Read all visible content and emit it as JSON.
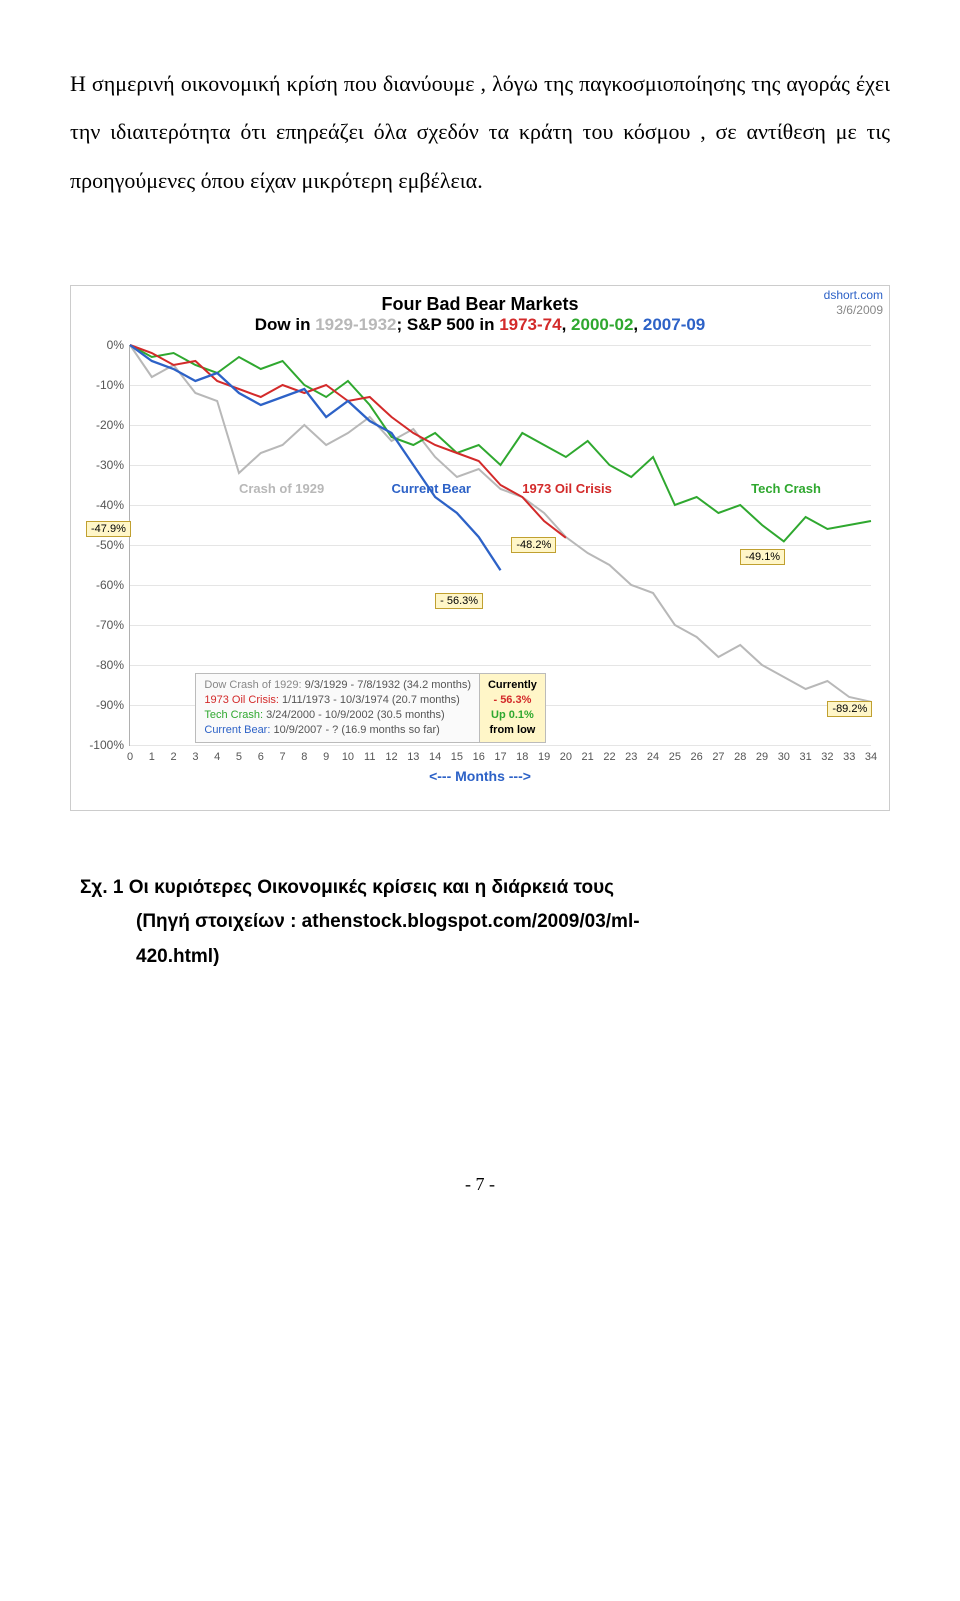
{
  "paragraph": "Η σημερινή οικονομική κρίση που διανύουμε , λόγω της παγκοσμιοποίησης της αγοράς έχει την ιδιαιτερότητα ότι επηρεάζει όλα σχεδόν τα κράτη του  κόσμου , σε αντίθεση με τις προηγούμενες όπου είχαν μικρότερη εμβέλεια.",
  "chart": {
    "title": "Four Bad Bear Markets",
    "subtitle_prefix": "Dow in ",
    "sub_grey": "1929-1932",
    "sub_mid": "; S&P 500 in ",
    "sub_red": "1973-74",
    "sub_sep": ", ",
    "sub_green": "2000-02",
    "sub_blue": "2007-09",
    "source_link": "dshort.com",
    "source_date": "3/6/2009",
    "ylabels": [
      "0%",
      "-10%",
      "-20%",
      "-30%",
      "-40%",
      "-50%",
      "-60%",
      "-70%",
      "-80%",
      "-90%",
      "-100%"
    ],
    "xlabels": [
      "0",
      "1",
      "2",
      "3",
      "4",
      "5",
      "6",
      "7",
      "8",
      "9",
      "10",
      "11",
      "12",
      "13",
      "14",
      "15",
      "16",
      "17",
      "18",
      "19",
      "20",
      "21",
      "22",
      "23",
      "24",
      "25",
      "26",
      "27",
      "28",
      "29",
      "30",
      "31",
      "32",
      "33",
      "34"
    ],
    "x_axis_title": "<--- Months --->",
    "colors": {
      "grey": "#b8b8b8",
      "red": "#d32a2a",
      "green": "#2fa82f",
      "blue": "#2d62c7",
      "grid": "#e5e5e5",
      "x_title": "#2d62c7"
    },
    "tags": {
      "crash29": "Crash of 1929",
      "current": "Current Bear",
      "oil73": "1973 Oil Crisis",
      "tech": "Tech Crash"
    },
    "badges": {
      "b479": "-47.9%",
      "b482": "-48.2%",
      "b491": "-49.1%",
      "b563": "- 56.3%",
      "b892": "-89.2%"
    },
    "legend": {
      "l1a": "Dow Crash of 1929:",
      "l1b": " 9/3/1929 - 7/8/1932 (34.2 months)",
      "l2a": "1973 Oil Crisis:",
      "l2b": " 1/11/1973 - 10/3/1974 (20.7 months)",
      "l3a": "Tech Crash:",
      "l3b": " 3/24/2000 - 10/9/2002 (30.5 months)",
      "l4a": "Current Bear:",
      "l4b": " 10/9/2007 - ?  (16.9 months so far)",
      "c1": "Currently",
      "c2": "- 56.3%",
      "c3": "Up 0.1%",
      "c4": "from low"
    }
  },
  "caption_line1": "Σχ. 1  Οι κυριότερες Οικονομικές κρίσεις και η διάρκειά τους",
  "caption_line2": "(Πηγή στοιχείων : athenstock.blogspot.com/2009/03/ml-",
  "caption_line3": "420.html)",
  "page_number": "- 7 -",
  "series": {
    "grey": [
      0,
      -8,
      -5,
      -12,
      -14,
      -32,
      -27,
      -25,
      -20,
      -25,
      -22,
      -18,
      -24,
      -21,
      -28,
      -33,
      -31,
      -36,
      -38,
      -42,
      -48,
      -52,
      -55,
      -60,
      -62,
      -70,
      -73,
      -78,
      -75,
      -80,
      -83,
      -86,
      -84,
      -88,
      -89.2
    ],
    "red": [
      0,
      -2,
      -5,
      -4,
      -9,
      -11,
      -13,
      -10,
      -12,
      -10,
      -14,
      -13,
      -18,
      -22,
      -25,
      -27,
      -29,
      -35,
      -38,
      -44,
      -48.2
    ],
    "green": [
      0,
      -3,
      -2,
      -5,
      -7,
      -3,
      -6,
      -4,
      -10,
      -13,
      -9,
      -15,
      -23,
      -25,
      -22,
      -27,
      -25,
      -30,
      -22,
      -25,
      -28,
      -24,
      -30,
      -33,
      -28,
      -40,
      -38,
      -42,
      -40,
      -45,
      -49.1,
      -43,
      -46,
      -45,
      -44
    ],
    "blue": [
      0,
      -4,
      -6,
      -9,
      -7,
      -12,
      -15,
      -13,
      -11,
      -18,
      -14,
      -19,
      -22,
      -30,
      -38,
      -42,
      -48,
      -56.3
    ]
  }
}
